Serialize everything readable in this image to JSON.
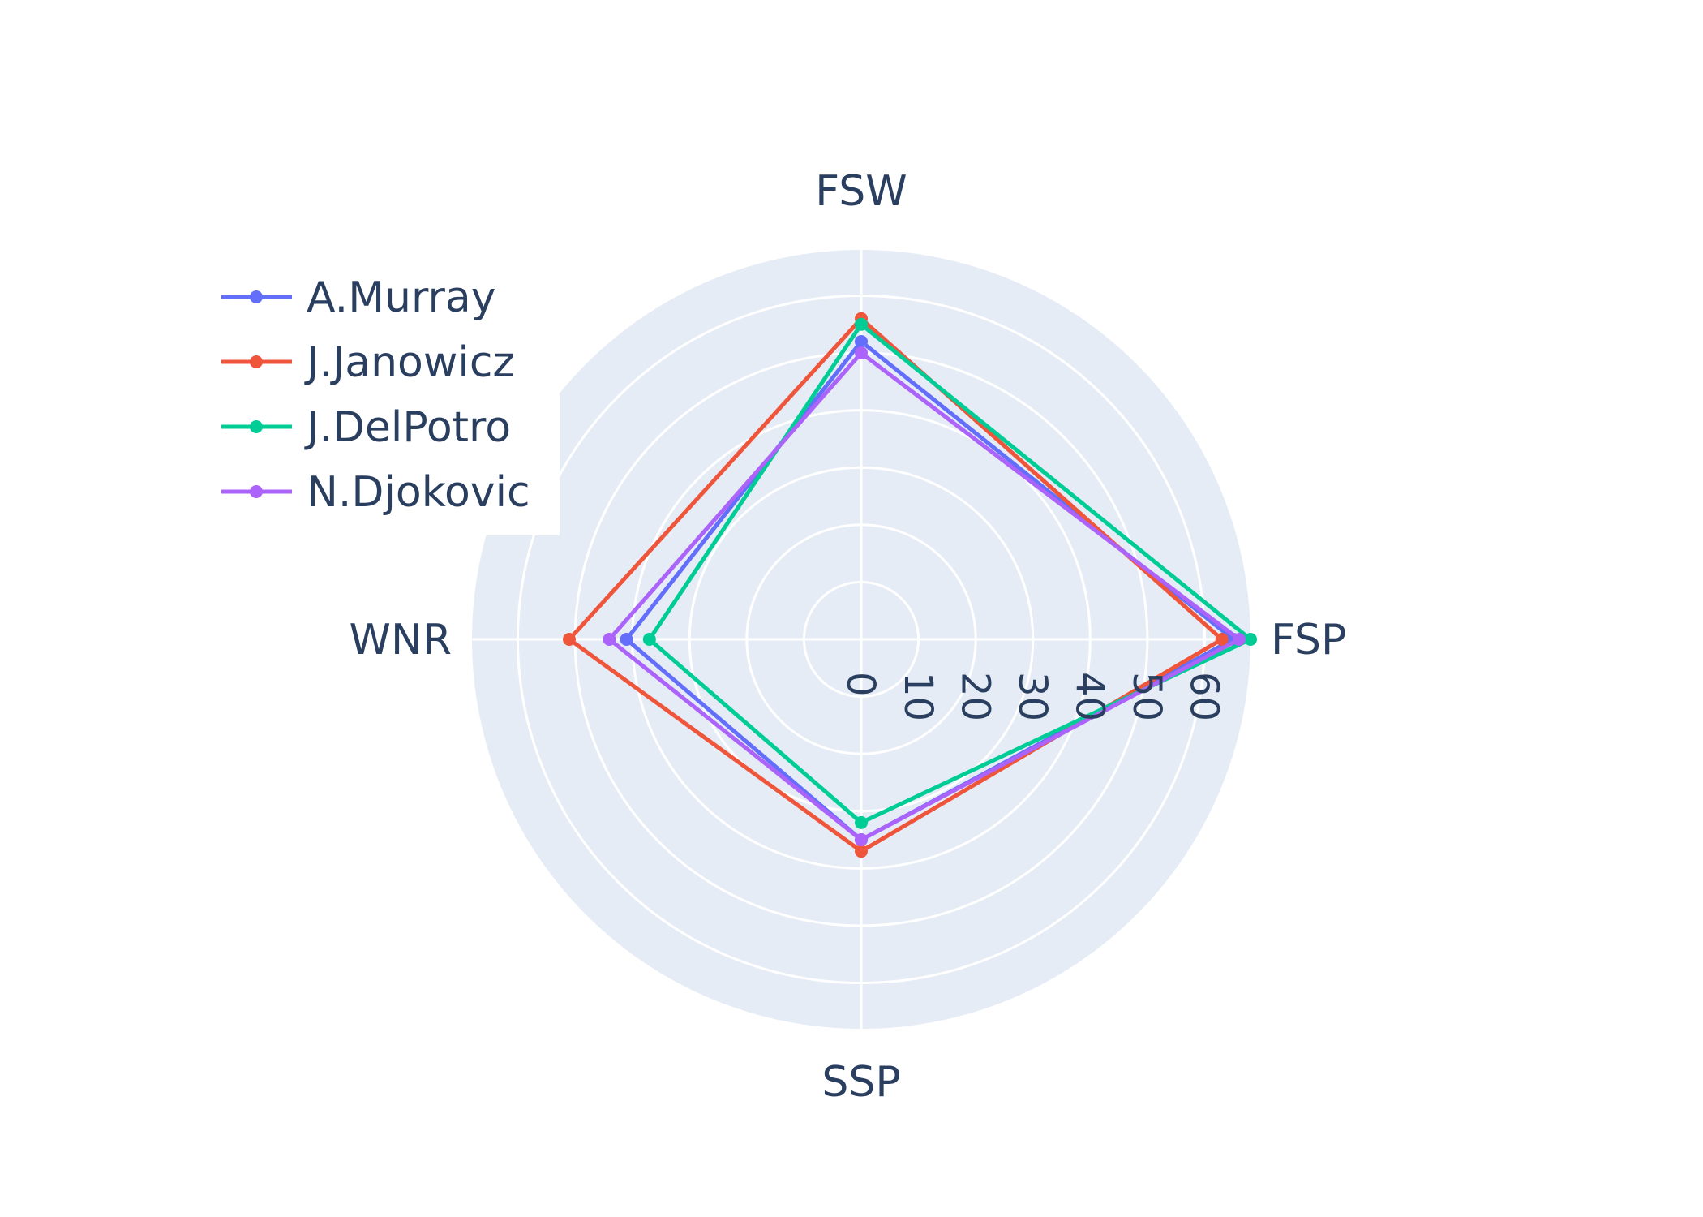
{
  "chart_data": {
    "type": "radar",
    "axes": [
      "FSW",
      "FSP",
      "SSP",
      "WNR"
    ],
    "radial_range": [
      0,
      68
    ],
    "radial_ticks": [
      "0",
      "10",
      "20",
      "30",
      "40",
      "50",
      "60"
    ],
    "grid": true,
    "legend_position": "top-left",
    "background_color": "#e5ecf6",
    "series": [
      {
        "name": "A.Murray",
        "color": "#636efa",
        "values": [
          52,
          65,
          35,
          41
        ]
      },
      {
        "name": "J.Janowicz",
        "color": "#ef553b",
        "values": [
          56,
          63,
          37,
          51
        ]
      },
      {
        "name": "J.DelPotro",
        "color": "#00cc96",
        "values": [
          55,
          68,
          32,
          37
        ]
      },
      {
        "name": "N.Djokovic",
        "color": "#ab63fa",
        "values": [
          50,
          66,
          35,
          44
        ]
      }
    ]
  }
}
